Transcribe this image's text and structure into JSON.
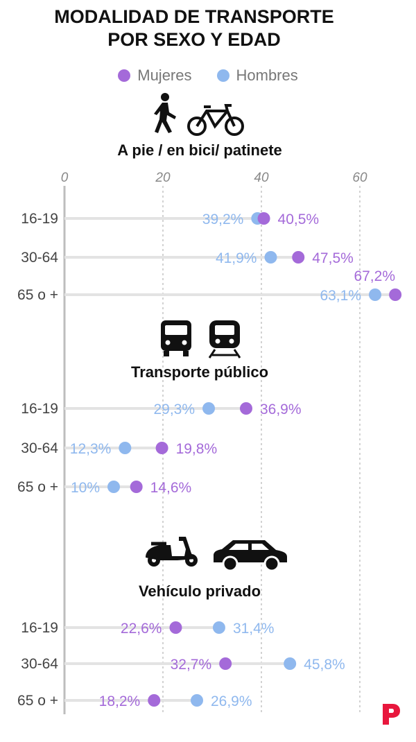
{
  "title_lines": [
    "MODALIDAD DE TRANSPORTE",
    "POR SEXO Y EDAD"
  ],
  "legend": [
    {
      "label": "Mujeres",
      "color": "#a46ad9"
    },
    {
      "label": "Hombres",
      "color": "#8fb8ee"
    }
  ],
  "colors": {
    "mujeres": "#a46ad9",
    "hombres": "#8fb8ee",
    "track": "#e3e3e3",
    "axis": "#bdbdbd"
  },
  "chart_data": {
    "type": "dot",
    "x_ticks": [
      0,
      20,
      40,
      60
    ],
    "xlim": [
      0,
      70
    ],
    "groups": [
      {
        "title": "A pie / en bici/ patinete",
        "icons": [
          "walking-person-icon",
          "bicycle-icon"
        ],
        "rows": [
          {
            "age": "16-19",
            "mujeres": 40.5,
            "hombres": 39.2,
            "mujeres_label": "40,5%",
            "hombres_label": "39,2%"
          },
          {
            "age": "30-64",
            "mujeres": 47.5,
            "hombres": 41.9,
            "mujeres_label": "47,5%",
            "hombres_label": "41,9%"
          },
          {
            "age": "65 o +",
            "mujeres": 67.2,
            "hombres": 63.1,
            "mujeres_label": "67,2%",
            "hombres_label": "63,1%"
          }
        ]
      },
      {
        "title": "Transporte público",
        "icons": [
          "bus-icon",
          "train-icon"
        ],
        "rows": [
          {
            "age": "16-19",
            "mujeres": 36.9,
            "hombres": 29.3,
            "mujeres_label": "36,9%",
            "hombres_label": "29,3%"
          },
          {
            "age": "30-64",
            "mujeres": 19.8,
            "hombres": 12.3,
            "mujeres_label": "19,8%",
            "hombres_label": "12,3%"
          },
          {
            "age": "65 o +",
            "mujeres": 14.6,
            "hombres": 10.0,
            "mujeres_label": "14,6%",
            "hombres_label": "10%"
          }
        ]
      },
      {
        "title": "Vehículo privado",
        "icons": [
          "scooter-icon",
          "car-icon"
        ],
        "rows": [
          {
            "age": "16-19",
            "mujeres": 22.6,
            "hombres": 31.4,
            "mujeres_label": "22,6%",
            "hombres_label": "31,4%"
          },
          {
            "age": "30-64",
            "mujeres": 32.7,
            "hombres": 45.8,
            "mujeres_label": "32,7%",
            "hombres_label": "45,8%"
          },
          {
            "age": "65 o +",
            "mujeres": 18.2,
            "hombres": 26.9,
            "mujeres_label": "18,2%",
            "hombres_label": "26,9%"
          }
        ]
      }
    ]
  }
}
